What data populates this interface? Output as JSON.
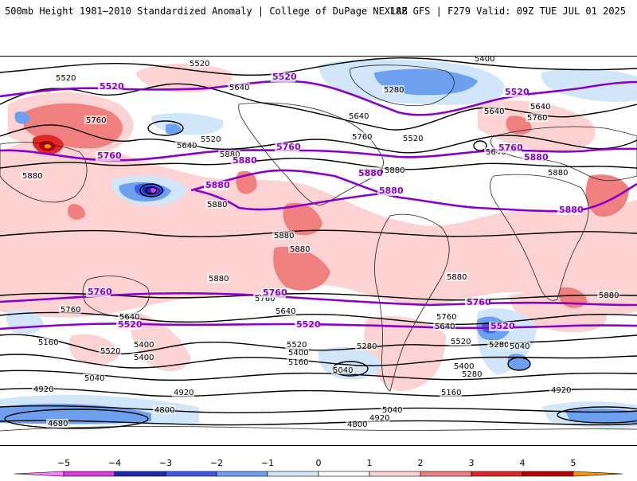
{
  "header": {
    "title_left": "500mb Height 1981–2010 Standardized Anomaly | College of DuPage NEXLAB",
    "title_right": "18Z GFS | F279 Valid: 09Z TUE JUL 01 2025"
  },
  "colors": {
    "pos1": "#fcd2d2",
    "pos2": "#f08080",
    "pos3": "#dc2828",
    "pos4": "#b40000",
    "pos5": "#ff9600",
    "neg1": "#d2e6fa",
    "neg2": "#6ea0f0",
    "neg3": "#3c5ae6",
    "neg4": "#1e28b4",
    "neg5": "#dc3cdc",
    "height_line": "#000000",
    "height_line_bold": "#8a00c8"
  },
  "colorbar": {
    "ticks": [
      "−5",
      "−4",
      "−3",
      "−2",
      "−1",
      "0",
      "1",
      "2",
      "3",
      "4",
      "5"
    ]
  },
  "contour_labels": [
    {
      "t": "5520"
    },
    {
      "t": "5520"
    },
    {
      "t": "5640"
    },
    {
      "t": "5400"
    },
    {
      "t": "5280"
    },
    {
      "t": "5640"
    },
    {
      "t": "5760"
    },
    {
      "t": "5640"
    },
    {
      "t": "5520"
    },
    {
      "t": "5640"
    },
    {
      "t": "5880"
    },
    {
      "t": "5880"
    },
    {
      "t": "5880"
    },
    {
      "t": "5880"
    },
    {
      "t": "5640"
    },
    {
      "t": "5760"
    },
    {
      "t": "5520"
    },
    {
      "t": "5640"
    },
    {
      "t": "5760"
    },
    {
      "t": "5880"
    },
    {
      "t": "5880"
    },
    {
      "t": "5880"
    },
    {
      "t": "5880"
    },
    {
      "t": "5880"
    },
    {
      "t": "5880"
    },
    {
      "t": "5760"
    },
    {
      "t": "5640"
    },
    {
      "t": "5760"
    },
    {
      "t": "5640"
    },
    {
      "t": "5760"
    },
    {
      "t": "5640"
    },
    {
      "t": "5880"
    },
    {
      "t": "5160"
    },
    {
      "t": "5520"
    },
    {
      "t": "5400"
    },
    {
      "t": "5520"
    },
    {
      "t": "5400"
    },
    {
      "t": "5160"
    },
    {
      "t": "5280"
    },
    {
      "t": "5040"
    },
    {
      "t": "5040"
    },
    {
      "t": "5280"
    },
    {
      "t": "5520"
    },
    {
      "t": "5400"
    },
    {
      "t": "5280"
    },
    {
      "t": "5040"
    },
    {
      "t": "4920"
    },
    {
      "t": "4920"
    },
    {
      "t": "5040"
    },
    {
      "t": "4800"
    },
    {
      "t": "4920"
    },
    {
      "t": "4800"
    },
    {
      "t": "4680"
    },
    {
      "t": "5160"
    },
    {
      "t": "4920"
    },
    {
      "t": "5400"
    }
  ],
  "purple_labels": [
    {
      "t": "5520"
    },
    {
      "t": "5520"
    },
    {
      "t": "5520"
    },
    {
      "t": "5760"
    },
    {
      "t": "5760"
    },
    {
      "t": "5760"
    },
    {
      "t": "5880"
    },
    {
      "t": "5880"
    },
    {
      "t": "5880"
    },
    {
      "t": "5880"
    },
    {
      "t": "5880"
    },
    {
      "t": "5880"
    },
    {
      "t": "5760"
    },
    {
      "t": "5760"
    },
    {
      "t": "5760"
    },
    {
      "t": "5520"
    },
    {
      "t": "5520"
    },
    {
      "t": "5520"
    }
  ]
}
